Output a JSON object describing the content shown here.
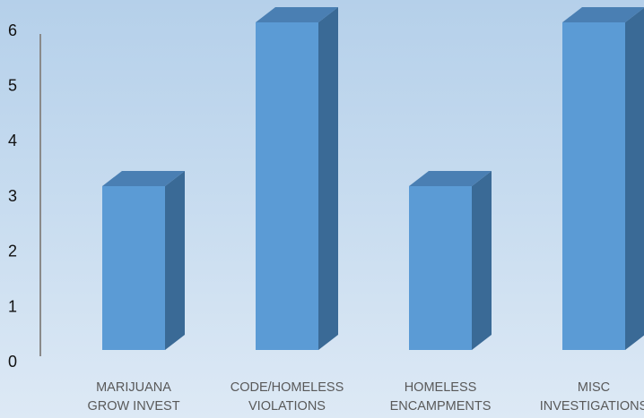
{
  "chart_data": {
    "type": "bar",
    "style": "3d-column",
    "categories": [
      [
        "MARIJUANA",
        "GROW INVEST"
      ],
      [
        "CODE/HOMELESS",
        "VIOLATIONS"
      ],
      [
        "HOMELESS",
        "ENCAMPMENTS"
      ],
      [
        "MISC",
        "INVESTIGATIONS"
      ]
    ],
    "values": [
      3,
      6,
      3,
      6
    ],
    "ylim": [
      0,
      6
    ],
    "yticks": [
      "0",
      "1",
      "2",
      "3",
      "4",
      "5",
      "6"
    ],
    "grid": false,
    "legend": "none",
    "colors": {
      "bar_front": "#5b9bd5",
      "bar_side": "#3a6a96",
      "bar_top": "#4a7fb3",
      "axis_line": "#8a8a8a"
    }
  }
}
